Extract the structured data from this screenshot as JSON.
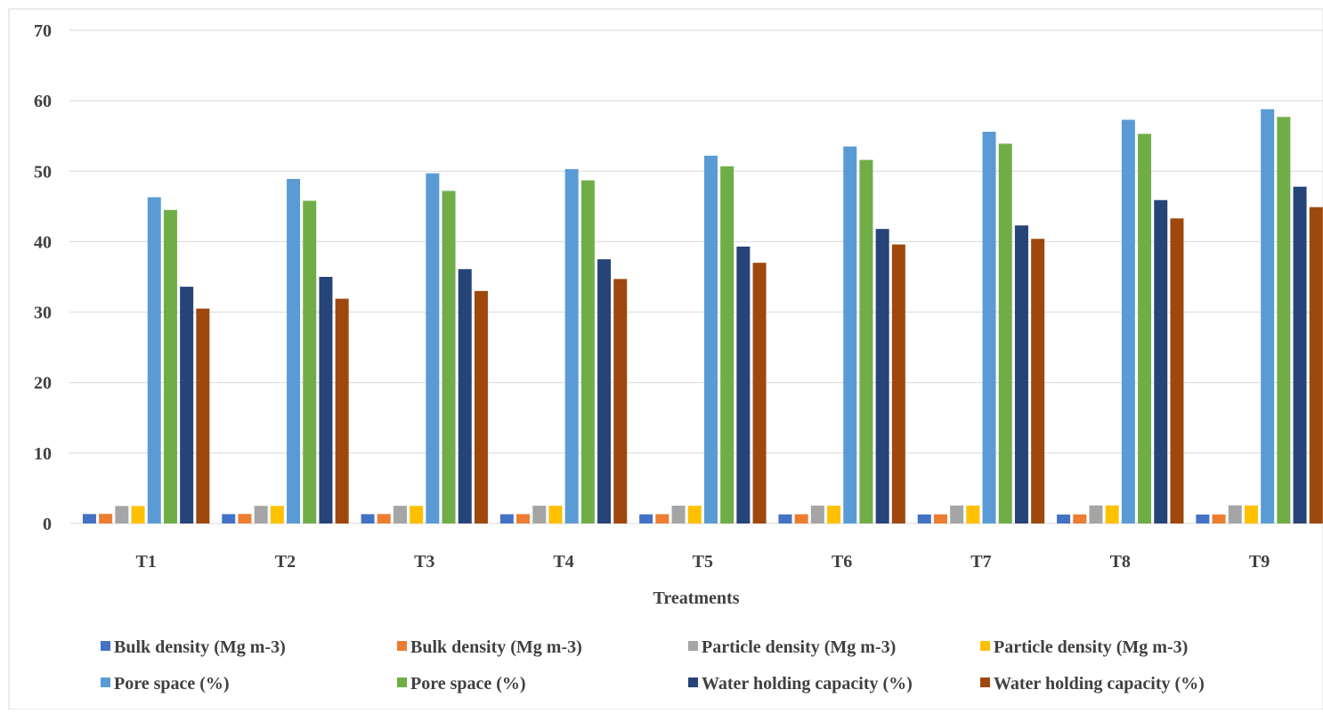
{
  "chart_data": {
    "type": "bar",
    "title": "",
    "xlabel": "Treatments",
    "ylabel": "",
    "ylim": [
      0,
      70
    ],
    "yticks": [
      0,
      10,
      20,
      30,
      40,
      50,
      60,
      70
    ],
    "grid": true,
    "legend_position": "bottom",
    "categories": [
      "T1",
      "T2",
      "T3",
      "T4",
      "T5",
      "T6",
      "T7",
      "T8",
      "T9"
    ],
    "series": [
      {
        "name": "Bulk density (Mg m-3)",
        "color": "#4472C4",
        "values": [
          1.34,
          1.33,
          1.32,
          1.31,
          1.3,
          1.29,
          1.28,
          1.27,
          1.27
        ]
      },
      {
        "name": "Bulk density (Mg m-3)",
        "color": "#ED7D31",
        "values": [
          1.36,
          1.35,
          1.34,
          1.33,
          1.32,
          1.31,
          1.3,
          1.29,
          1.28
        ]
      },
      {
        "name": "Particle density (Mg m-3)",
        "color": "#A5A5A5",
        "values": [
          2.48,
          2.5,
          2.51,
          2.52,
          2.53,
          2.54,
          2.55,
          2.56,
          2.57
        ]
      },
      {
        "name": "Particle density (Mg m-3)",
        "color": "#FFC000",
        "values": [
          2.47,
          2.49,
          2.5,
          2.51,
          2.52,
          2.53,
          2.54,
          2.55,
          2.56
        ]
      },
      {
        "name": "Pore space (%)",
        "color": "#5B9BD5",
        "values": [
          46.3,
          48.9,
          49.7,
          50.3,
          52.2,
          53.5,
          55.6,
          57.3,
          58.8
        ]
      },
      {
        "name": "Pore space (%)",
        "color": "#70AD47",
        "values": [
          44.5,
          45.8,
          47.2,
          48.7,
          50.7,
          51.6,
          53.9,
          55.3,
          57.7
        ]
      },
      {
        "name": "Water holding capacity (%)",
        "color": "#264478",
        "values": [
          33.6,
          35.0,
          36.1,
          37.5,
          39.3,
          41.8,
          42.3,
          45.9,
          47.8
        ]
      },
      {
        "name": "Water holding capacity (%)",
        "color": "#9E480E",
        "values": [
          30.5,
          31.9,
          33.0,
          34.7,
          37.0,
          39.6,
          40.4,
          43.3,
          44.9
        ]
      }
    ]
  }
}
